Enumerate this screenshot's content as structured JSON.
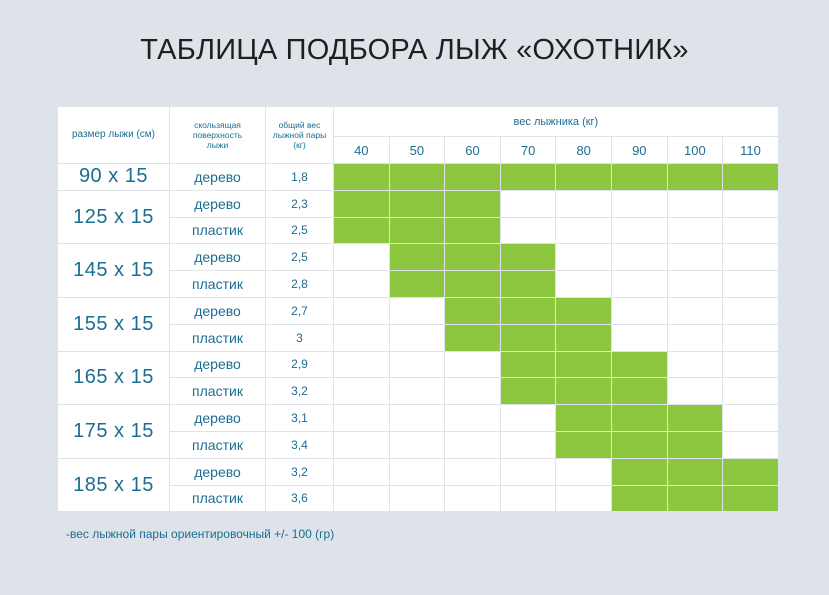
{
  "title": "ТАБЛИЦА ПОДБОРА ЛЫЖ «ОХОТНИК»",
  "headers": {
    "size": "размер лыжи (см)",
    "surface": "скользящая поверхность лыжи",
    "pair_weight": "общий вес лыжной пары (кг)",
    "skier_weight": "вес лыжника (кг)"
  },
  "weights": [
    "40",
    "50",
    "60",
    "70",
    "80",
    "90",
    "100",
    "110"
  ],
  "rows": [
    {
      "size": "90 x 15",
      "surface": "дерево",
      "pair": "1,8",
      "range": [
        40,
        110
      ]
    },
    {
      "size": "125 x 15",
      "surface": "дерево",
      "pair": "2,3",
      "range": [
        40,
        60
      ]
    },
    {
      "size": "",
      "surface": "пластик",
      "pair": "2,5",
      "range": [
        40,
        60
      ]
    },
    {
      "size": "145 x 15",
      "surface": "дерево",
      "pair": "2,5",
      "range": [
        50,
        70
      ]
    },
    {
      "size": "",
      "surface": "пластик",
      "pair": "2,8",
      "range": [
        50,
        70
      ]
    },
    {
      "size": "155 x 15",
      "surface": "дерево",
      "pair": "2,7",
      "range": [
        60,
        80
      ]
    },
    {
      "size": "",
      "surface": "пластик",
      "pair": "3",
      "range": [
        60,
        80
      ]
    },
    {
      "size": "165 x 15",
      "surface": "дерево",
      "pair": "2,9",
      "range": [
        70,
        90
      ]
    },
    {
      "size": "",
      "surface": "пластик",
      "pair": "3,2",
      "range": [
        70,
        90
      ]
    },
    {
      "size": "175 x 15",
      "surface": "дерево",
      "pair": "3,1",
      "range": [
        80,
        100
      ]
    },
    {
      "size": "",
      "surface": "пластик",
      "pair": "3,4",
      "range": [
        80,
        100
      ]
    },
    {
      "size": "185 x 15",
      "surface": "дерево",
      "pair": "3,2",
      "range": [
        90,
        110
      ]
    },
    {
      "size": "",
      "surface": "пластик",
      "pair": "3,6",
      "range": [
        90,
        110
      ]
    }
  ],
  "note": "-вес лыжной пары ориентировочный +/- 100 (гр)",
  "colors": {
    "fill": "#8dc63f",
    "text": "#1b6d93",
    "background": "#dde3e8"
  }
}
